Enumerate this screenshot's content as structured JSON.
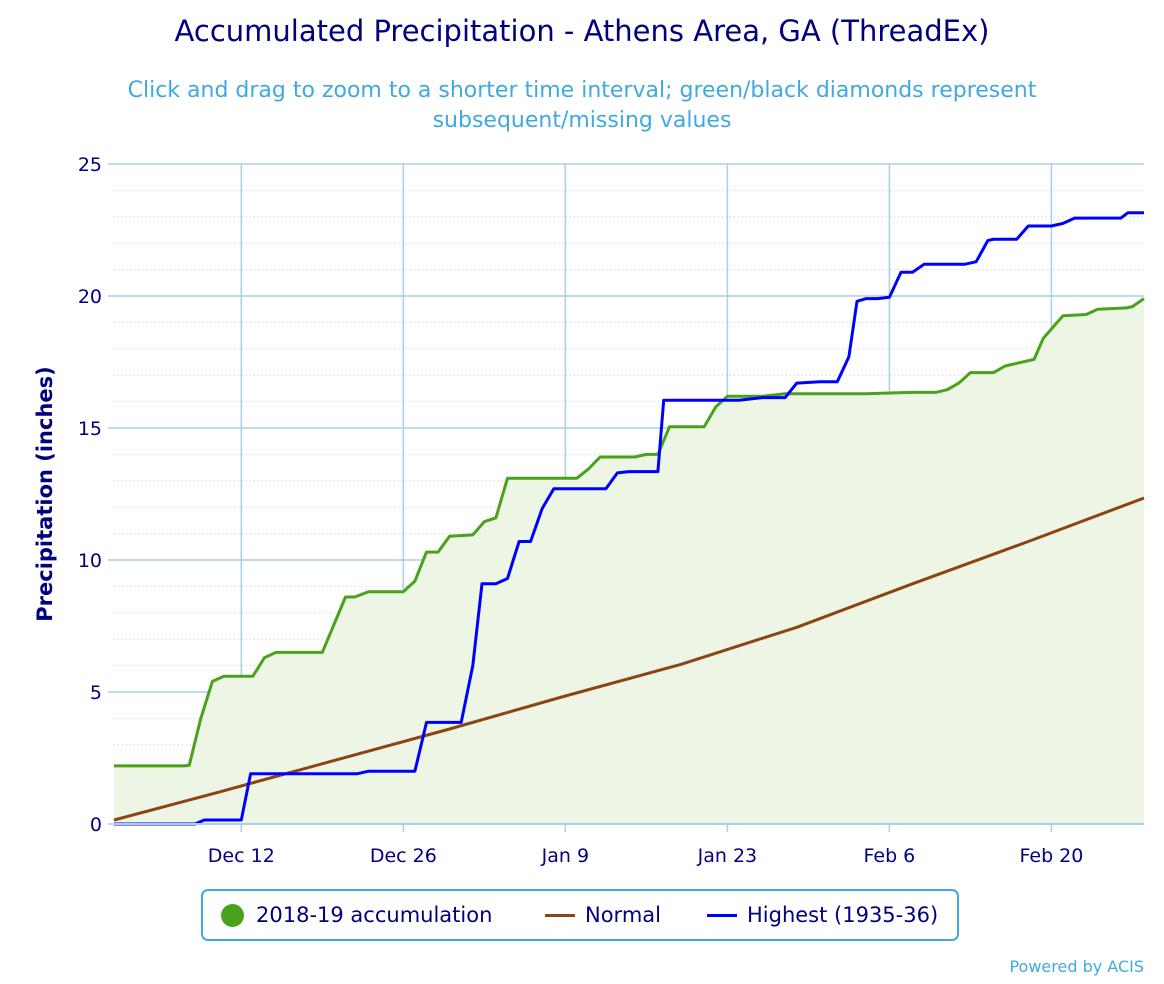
{
  "chart": {
    "title": "Accumulated Precipitation - Athens Area, GA (ThreadEx)",
    "subtitle_line1": "Click and drag to zoom to a shorter time interval; green/black diamonds represent",
    "subtitle_line2": "subsequent/missing values",
    "credit": "Powered by ACIS"
  },
  "legend": {
    "accumulation_label": "2018-19 accumulation",
    "normal_label": "Normal",
    "highest_label": "Highest (1935-36)"
  },
  "colors": {
    "accumulation": "#4aa21c",
    "accumulation_fill": "#edf5e5",
    "normal": "#8b4513",
    "highest": "#0000ff",
    "grid": "#a9d0e8",
    "axis_text": "#000080"
  },
  "chart_data": {
    "type": "line",
    "title": "Accumulated Precipitation - Athens Area, GA (ThreadEx)",
    "ylabel": "Precipitation (inches)",
    "xlabel": "",
    "x_unit": "day of season (Dec 1 = 1)",
    "xlim": [
      1,
      90
    ],
    "ylim": [
      0,
      25
    ],
    "y_ticks": [
      0,
      5,
      10,
      15,
      20,
      25
    ],
    "x_ticks": [
      {
        "x": 12,
        "label": "Dec 12"
      },
      {
        "x": 26,
        "label": "Dec 26"
      },
      {
        "x": 40,
        "label": "Jan 9"
      },
      {
        "x": 54,
        "label": "Jan 23"
      },
      {
        "x": 68,
        "label": "Feb 6"
      },
      {
        "x": 82,
        "label": "Feb 20"
      }
    ],
    "grid": true,
    "legend_position": "bottom",
    "series": [
      {
        "name": "2018-19 accumulation",
        "points": [
          [
            1,
            2.2
          ],
          [
            7,
            2.2
          ],
          [
            7.5,
            2.22
          ],
          [
            8.5,
            4.0
          ],
          [
            9.5,
            5.4
          ],
          [
            10.5,
            5.6
          ],
          [
            12.0,
            5.6
          ],
          [
            13.0,
            5.6
          ],
          [
            14.0,
            6.3
          ],
          [
            15.0,
            6.5
          ],
          [
            19.0,
            6.5
          ],
          [
            21.0,
            8.6
          ],
          [
            21.8,
            8.6
          ],
          [
            23.0,
            8.8
          ],
          [
            26.0,
            8.8
          ],
          [
            27.0,
            9.2
          ],
          [
            28.0,
            10.3
          ],
          [
            29.0,
            10.3
          ],
          [
            30.0,
            10.9
          ],
          [
            32.0,
            10.95
          ],
          [
            33.0,
            11.45
          ],
          [
            34.0,
            11.6
          ],
          [
            35.0,
            13.1
          ],
          [
            39.0,
            13.1
          ],
          [
            41.0,
            13.1
          ],
          [
            42.0,
            13.45
          ],
          [
            43.0,
            13.9
          ],
          [
            46.0,
            13.9
          ],
          [
            47.0,
            14.0
          ],
          [
            48.0,
            14.0
          ],
          [
            49.0,
            15.05
          ],
          [
            52.0,
            15.05
          ],
          [
            53.0,
            15.8
          ],
          [
            54.0,
            16.2
          ],
          [
            57.0,
            16.2
          ],
          [
            59.0,
            16.3
          ],
          [
            62.0,
            16.3
          ],
          [
            66.0,
            16.3
          ],
          [
            70.0,
            16.35
          ],
          [
            72.0,
            16.35
          ],
          [
            73.0,
            16.45
          ],
          [
            74.0,
            16.7
          ],
          [
            75.0,
            17.1
          ],
          [
            77.0,
            17.1
          ],
          [
            78.0,
            17.35
          ],
          [
            80.0,
            17.55
          ],
          [
            80.5,
            17.6
          ],
          [
            81.3,
            18.4
          ],
          [
            82.0,
            18.75
          ],
          [
            83.0,
            19.25
          ],
          [
            85.0,
            19.3
          ],
          [
            86.0,
            19.5
          ],
          [
            88.5,
            19.55
          ],
          [
            89.0,
            19.6
          ],
          [
            90.0,
            19.9
          ]
        ]
      },
      {
        "name": "Normal",
        "points": [
          [
            1,
            0.15
          ],
          [
            10,
            1.2
          ],
          [
            20,
            2.4
          ],
          [
            30,
            3.6
          ],
          [
            40,
            4.85
          ],
          [
            50,
            6.05
          ],
          [
            60,
            7.45
          ],
          [
            70,
            9.1
          ],
          [
            80,
            10.7
          ],
          [
            90,
            12.35
          ]
        ]
      },
      {
        "name": "Highest (1935-36)",
        "points": [
          [
            1,
            0.0
          ],
          [
            8.0,
            0.0
          ],
          [
            8.8,
            0.15
          ],
          [
            12.0,
            0.15
          ],
          [
            12.8,
            1.9
          ],
          [
            22.0,
            1.9
          ],
          [
            23.0,
            2.0
          ],
          [
            27.0,
            2.0
          ],
          [
            28.0,
            3.85
          ],
          [
            31.0,
            3.85
          ],
          [
            32.0,
            6.0
          ],
          [
            32.8,
            9.1
          ],
          [
            34.0,
            9.1
          ],
          [
            35.0,
            9.3
          ],
          [
            36.0,
            10.7
          ],
          [
            37.0,
            10.7
          ],
          [
            38.0,
            11.95
          ],
          [
            39.0,
            12.7
          ],
          [
            42.0,
            12.7
          ],
          [
            43.5,
            12.7
          ],
          [
            44.5,
            13.3
          ],
          [
            45.5,
            13.35
          ],
          [
            47.0,
            13.35
          ],
          [
            48.0,
            13.35
          ],
          [
            48.5,
            16.05
          ],
          [
            52.0,
            16.05
          ],
          [
            55.0,
            16.05
          ],
          [
            57.0,
            16.15
          ],
          [
            59.0,
            16.15
          ],
          [
            60.0,
            16.7
          ],
          [
            62.0,
            16.75
          ],
          [
            63.5,
            16.75
          ],
          [
            64.5,
            17.7
          ],
          [
            65.2,
            19.8
          ],
          [
            66.0,
            19.9
          ],
          [
            67.0,
            19.9
          ],
          [
            68.0,
            19.95
          ],
          [
            69.0,
            20.9
          ],
          [
            70.0,
            20.9
          ],
          [
            71.0,
            21.2
          ],
          [
            74.5,
            21.2
          ],
          [
            75.5,
            21.3
          ],
          [
            76.5,
            22.1
          ],
          [
            77.0,
            22.15
          ],
          [
            79.0,
            22.15
          ],
          [
            80.0,
            22.65
          ],
          [
            82.0,
            22.65
          ],
          [
            83.0,
            22.75
          ],
          [
            84.0,
            22.95
          ],
          [
            88.0,
            22.95
          ],
          [
            88.6,
            23.15
          ],
          [
            90.0,
            23.15
          ]
        ]
      }
    ]
  }
}
